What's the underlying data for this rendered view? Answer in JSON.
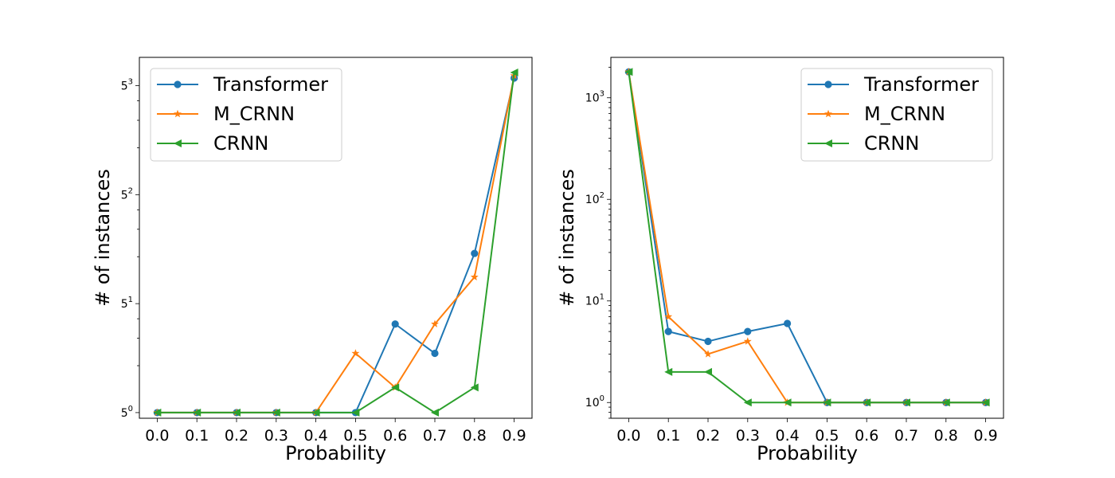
{
  "chart_data": [
    {
      "type": "line",
      "y_scale": "log",
      "y_log_base": 5,
      "x": [
        0.0,
        0.1,
        0.2,
        0.3,
        0.4,
        0.5,
        0.6,
        0.7,
        0.8,
        0.9
      ],
      "x_tick_labels": [
        "0.0",
        "0.1",
        "0.2",
        "0.3",
        "0.4",
        "0.5",
        "0.6",
        "0.7",
        "0.8",
        "0.9"
      ],
      "y_tick_labels": [
        {
          "base": "5",
          "exp": "0"
        },
        {
          "base": "5",
          "exp": "1"
        },
        {
          "base": "5",
          "exp": "2"
        },
        {
          "base": "5",
          "exp": "3"
        }
      ],
      "ylim": [
        0.92,
        190
      ],
      "xlabel": "Probability",
      "ylabel": "# of instances",
      "legend_position": "top-left",
      "series": [
        {
          "name": "Transformer",
          "marker": "circle",
          "color": "#1f77b4",
          "values": [
            1,
            1,
            1,
            1,
            1,
            1,
            3.7,
            2.4,
            10.5,
            140
          ]
        },
        {
          "name": "M_CRNN",
          "marker": "star",
          "color": "#ff7f0e",
          "values": [
            1,
            1,
            1,
            1,
            1,
            2.4,
            1.45,
            3.7,
            7.4,
            145
          ]
        },
        {
          "name": "CRNN",
          "marker": "triangle-left",
          "color": "#2ca02c",
          "values": [
            1,
            1,
            1,
            1,
            1,
            1,
            1.45,
            1,
            1.45,
            152
          ]
        }
      ]
    },
    {
      "type": "line",
      "y_scale": "log",
      "y_log_base": 10,
      "x": [
        0.0,
        0.1,
        0.2,
        0.3,
        0.4,
        0.5,
        0.6,
        0.7,
        0.8,
        0.9
      ],
      "x_tick_labels": [
        "0.0",
        "0.1",
        "0.2",
        "0.3",
        "0.4",
        "0.5",
        "0.6",
        "0.7",
        "0.8",
        "0.9"
      ],
      "y_tick_labels": [
        {
          "base": "10",
          "exp": "0"
        },
        {
          "base": "10",
          "exp": "1"
        },
        {
          "base": "10",
          "exp": "2"
        },
        {
          "base": "10",
          "exp": "3"
        }
      ],
      "ylim": [
        0.7,
        2500
      ],
      "xlabel": "Probability",
      "ylabel": "# of instances",
      "legend_position": "top-right",
      "series": [
        {
          "name": "Transformer",
          "marker": "circle",
          "color": "#1f77b4",
          "values": [
            1800,
            5,
            4,
            5,
            6,
            1,
            1,
            1,
            1,
            1
          ]
        },
        {
          "name": "M_CRNN",
          "marker": "star",
          "color": "#ff7f0e",
          "values": [
            1800,
            7,
            3,
            4,
            1,
            1,
            1,
            1,
            1,
            1
          ]
        },
        {
          "name": "CRNN",
          "marker": "triangle-left",
          "color": "#2ca02c",
          "values": [
            1800,
            2,
            2,
            1,
            1,
            1,
            1,
            1,
            1,
            1
          ]
        }
      ]
    }
  ]
}
